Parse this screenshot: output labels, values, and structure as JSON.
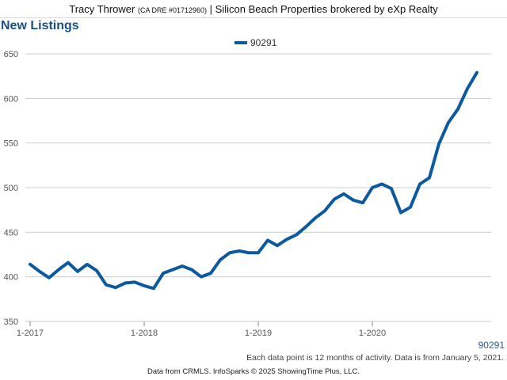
{
  "header": {
    "name": "Tracy Thrower",
    "license": "(CA DRE #01712960)",
    "separator": "|",
    "brokerage": "Silicon Beach Properties brokered by eXp Realty"
  },
  "panel_title": "New Listings",
  "note": "Each data point is 12 months of activity. Data is from January 5, 2021.",
  "footer": "Data from CRMLS. InfoSparks © 2025 ShowingTime Plus, LLC.",
  "series_tag": "90291",
  "colors": {
    "line": "#0b5aa0",
    "grid": "#cccccc",
    "title": "#1a4f86"
  },
  "chart_data": {
    "type": "line",
    "title": "",
    "xlabel": "",
    "ylabel": "",
    "ylim": [
      350,
      650
    ],
    "yticks": [
      "350",
      "400",
      "450",
      "500",
      "550",
      "600",
      "650"
    ],
    "xticks": [
      "1-2017",
      "1-2018",
      "1-2019",
      "1-2020"
    ],
    "x": [
      "2017-01",
      "2017-02",
      "2017-03",
      "2017-04",
      "2017-05",
      "2017-06",
      "2017-07",
      "2017-08",
      "2017-09",
      "2017-10",
      "2017-11",
      "2017-12",
      "2018-01",
      "2018-02",
      "2018-03",
      "2018-04",
      "2018-05",
      "2018-06",
      "2018-07",
      "2018-08",
      "2018-09",
      "2018-10",
      "2018-11",
      "2018-12",
      "2019-01",
      "2019-02",
      "2019-03",
      "2019-04",
      "2019-05",
      "2019-06",
      "2019-07",
      "2019-08",
      "2019-09",
      "2019-10",
      "2019-11",
      "2019-12",
      "2020-01",
      "2020-02",
      "2020-03",
      "2020-04",
      "2020-05",
      "2020-06",
      "2020-07",
      "2020-08",
      "2020-09",
      "2020-10",
      "2020-11",
      "2020-12"
    ],
    "legend": "top-center",
    "grid": true,
    "series": [
      {
        "name": "90291",
        "values": [
          414,
          406,
          399,
          408,
          416,
          406,
          414,
          407,
          391,
          388,
          393,
          394,
          390,
          387,
          404,
          408,
          412,
          408,
          400,
          404,
          419,
          427,
          429,
          427,
          427,
          441,
          435,
          442,
          447,
          456,
          466,
          474,
          487,
          493,
          486,
          483,
          500,
          504,
          499,
          472,
          478,
          504,
          511,
          549,
          573,
          588,
          611,
          629
        ]
      }
    ]
  }
}
